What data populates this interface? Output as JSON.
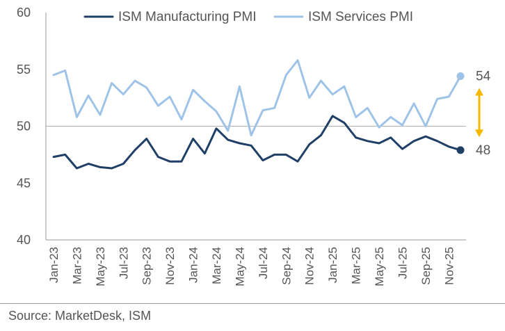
{
  "chart_data": {
    "type": "line",
    "x": [
      "Jan-23",
      "Feb-23",
      "Mar-23",
      "Apr-23",
      "May-23",
      "Jun-23",
      "Jul-23",
      "Aug-23",
      "Sep-23",
      "Oct-23",
      "Nov-23",
      "Dec-23",
      "Jan-24",
      "Feb-24",
      "Mar-24",
      "Apr-24",
      "May-24",
      "Jun-24",
      "Jul-24",
      "Aug-24",
      "Sep-24",
      "Oct-24",
      "Nov-24",
      "Dec-24",
      "Jan-25",
      "Feb-25",
      "Mar-25",
      "Apr-25",
      "May-25",
      "Jun-25",
      "Jul-25",
      "Aug-25",
      "Sep-25",
      "Oct-25",
      "Nov-25",
      "Dec-25"
    ],
    "xtick_labels": [
      "Jan-23",
      "Mar-23",
      "May-23",
      "Jul-23",
      "Sep-23",
      "Nov-23",
      "Jan-24",
      "Mar-24",
      "May-24",
      "Jul-24",
      "Sep-24",
      "Nov-24",
      "Jan-25",
      "Mar-25",
      "May-25",
      "Jul-25",
      "Sep-25",
      "Nov-25"
    ],
    "ylim": [
      40,
      60
    ],
    "yticks": [
      "40",
      "45",
      "50",
      "55",
      "60"
    ],
    "reference_line": 50,
    "series": [
      {
        "name": "ISM Manufacturing PMI",
        "color": "#1f3f66",
        "values": [
          47.3,
          47.5,
          46.3,
          46.7,
          46.4,
          46.3,
          46.7,
          47.9,
          48.9,
          47.3,
          46.9,
          46.9,
          48.9,
          47.6,
          49.8,
          48.8,
          48.5,
          48.3,
          47.0,
          47.5,
          47.5,
          46.9,
          48.4,
          49.2,
          50.9,
          50.3,
          49.0,
          48.7,
          48.5,
          49.0,
          48.0,
          48.7,
          49.1,
          48.7,
          48.2,
          47.9
        ],
        "end_label": "48"
      },
      {
        "name": "ISM Services PMI",
        "color": "#9fc3e6",
        "values": [
          54.5,
          54.9,
          50.8,
          52.7,
          51.0,
          53.8,
          52.8,
          54.0,
          53.4,
          51.8,
          52.6,
          50.6,
          53.2,
          52.2,
          51.3,
          49.6,
          53.5,
          49.2,
          51.4,
          51.6,
          54.5,
          55.8,
          52.5,
          54.0,
          52.8,
          53.5,
          50.8,
          51.6,
          49.9,
          50.8,
          50.1,
          52.0,
          50.0,
          52.4,
          52.6,
          54.4
        ],
        "end_label": "54"
      }
    ],
    "annotation": {
      "type": "double-arrow",
      "color": "#f5b800",
      "from": 53.3,
      "to": 49.1
    },
    "legend_position": "top"
  },
  "source": "Source: MarketDesk, ISM"
}
